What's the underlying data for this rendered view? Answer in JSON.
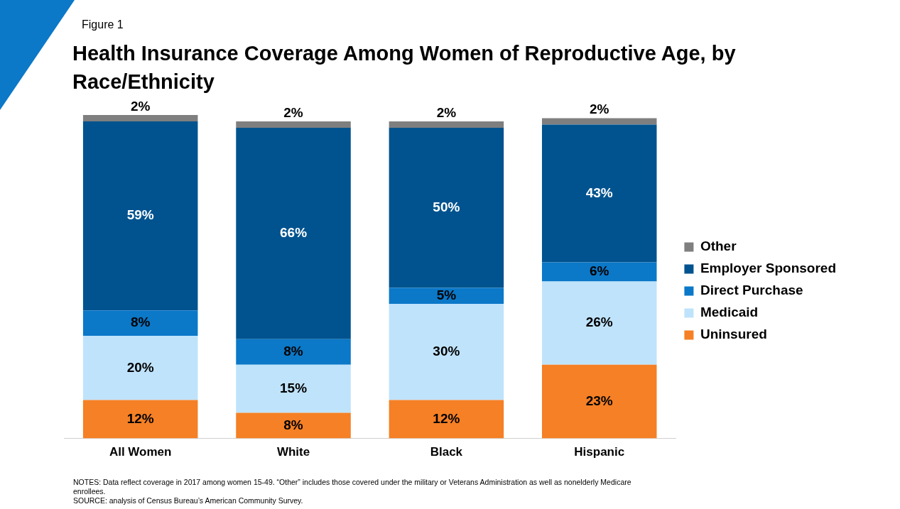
{
  "chart_data": {
    "type": "bar",
    "stacked": true,
    "title": "Health Insurance Coverage Among Women of Reproductive Age, by  Race/Ethnicity",
    "subtitle": "Figure 1",
    "categories": [
      "All Women",
      "White",
      "Black",
      "Hispanic"
    ],
    "series": [
      {
        "name": "Uninsured",
        "color": "#f58025",
        "values": [
          12,
          8,
          12,
          23
        ],
        "value_labels": [
          "12%",
          "8%",
          "12%",
          "23%"
        ]
      },
      {
        "name": "Medicaid",
        "color": "#bfe3fb",
        "values": [
          20,
          15,
          30,
          26
        ],
        "value_labels": [
          "20%",
          "15%",
          "30%",
          "26%"
        ]
      },
      {
        "name": "Direct Purchase",
        "color": "#0b78c8",
        "values": [
          8,
          8,
          5,
          6
        ],
        "value_labels": [
          "8%",
          "8%",
          "5%",
          "6%"
        ]
      },
      {
        "name": "Employer Sponsored",
        "color": "#00538f",
        "values": [
          59,
          66,
          50,
          43
        ],
        "value_labels": [
          "59%",
          "66%",
          "50%",
          "43%"
        ]
      },
      {
        "name": "Other",
        "color": "#7f7f7f",
        "values": [
          2,
          2,
          2,
          2
        ],
        "value_labels": [
          "2%",
          "2%",
          "2%",
          "2%"
        ]
      }
    ],
    "ylim": [
      0,
      101
    ],
    "tick_labels": "x",
    "grid": false,
    "legend": "right",
    "annotations": [
      "NOTES: Data reflect coverage in 2017 among women 15-49. “Other” includes those covered under the military or Veterans Administration as well as nonelderly Medicare enrollees.",
      "SOURCE: analysis of Census Bureau’s American Community Survey."
    ]
  }
}
